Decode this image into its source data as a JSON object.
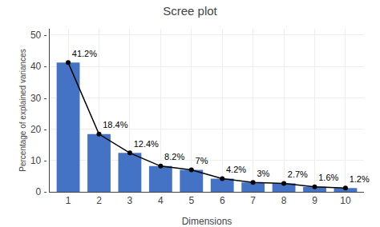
{
  "chart_data": {
    "type": "bar",
    "title": "Scree plot",
    "x_label": "Dimensions",
    "y_label": "Percentage of explained variances",
    "x": [
      1,
      2,
      3,
      4,
      5,
      6,
      7,
      8,
      9,
      10
    ],
    "series": [
      {
        "type": "bar",
        "color": "#4472c4",
        "values": [
          41.2,
          18.4,
          12.4,
          8.2,
          7.0,
          4.2,
          3.0,
          2.7,
          1.6,
          1.2
        ]
      },
      {
        "type": "line",
        "color": "#000000",
        "marker": "circle",
        "line_style": "solid",
        "values": [
          41.2,
          18.4,
          12.4,
          8.2,
          7.0,
          4.2,
          3.0,
          2.7,
          1.6,
          1.2
        ],
        "value_labels": [
          "41.2%",
          "18.4%",
          "12.4%",
          "8.2%",
          "7%",
          "4.2%",
          "3%",
          "2.7%",
          "1.6%",
          "1.2%"
        ]
      }
    ],
    "data_labels": true,
    "xlim": [
      0.4,
      10.6
    ],
    "xticks": [
      1,
      2,
      3,
      4,
      5,
      6,
      7,
      8,
      9,
      10
    ],
    "ylim": [
      0,
      52
    ],
    "yticks": [
      {
        "value": 0,
        "label": "0 -"
      },
      {
        "value": 10,
        "label": "10 -"
      },
      {
        "value": 20,
        "label": "20 -"
      },
      {
        "value": 30,
        "label": "30 -"
      },
      {
        "value": 40,
        "label": "40 -"
      },
      {
        "value": 50,
        "label": "50 -"
      }
    ],
    "grid": true
  }
}
